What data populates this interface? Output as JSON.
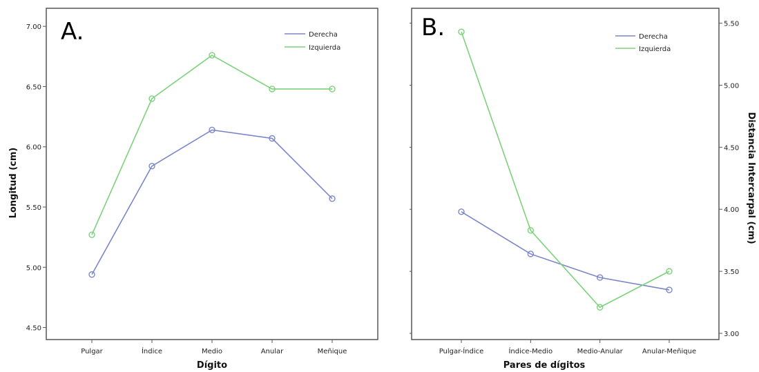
{
  "chart_data": [
    {
      "type": "line",
      "panel_label": "A.",
      "xlabel": "Dígito",
      "ylabel": "Longitud (cm)",
      "categories": [
        "Pulgar",
        "Índice",
        "Medio",
        "Anular",
        "Meñique"
      ],
      "ylim": [
        4.4,
        7.15
      ],
      "yticks": [
        "4.50",
        "5.00",
        "5.50",
        "6.00",
        "6.50",
        "7.00"
      ],
      "y_axis_side": "left",
      "grid": false,
      "legend_position": "top-right",
      "series": [
        {
          "name": "Derecha",
          "color": "#7b86c8",
          "values": [
            4.94,
            5.84,
            6.14,
            6.07,
            5.57
          ]
        },
        {
          "name": "Izquierda",
          "color": "#7bd27b",
          "values": [
            5.27,
            6.4,
            6.76,
            6.48,
            6.48
          ]
        }
      ]
    },
    {
      "type": "line",
      "panel_label": "B.",
      "xlabel": "Pares de dígitos",
      "ylabel": "Distancia Intercarpal (cm)",
      "categories": [
        "Pulgar-Índice",
        "Índice-Medio",
        "Medio-Anular",
        "Anular-Meñique"
      ],
      "ylim": [
        2.95,
        5.62
      ],
      "yticks": [
        "3.00",
        "3.50",
        "4.00",
        "4.50",
        "5.00",
        "5.50"
      ],
      "y_axis_side": "right",
      "grid": false,
      "legend_position": "top-right",
      "series": [
        {
          "name": "Derecha",
          "color": "#7b86c8",
          "values": [
            3.98,
            3.64,
            3.45,
            3.35
          ]
        },
        {
          "name": "Izquierda",
          "color": "#7bd27b",
          "values": [
            5.43,
            3.83,
            3.21,
            3.5
          ]
        }
      ]
    }
  ]
}
